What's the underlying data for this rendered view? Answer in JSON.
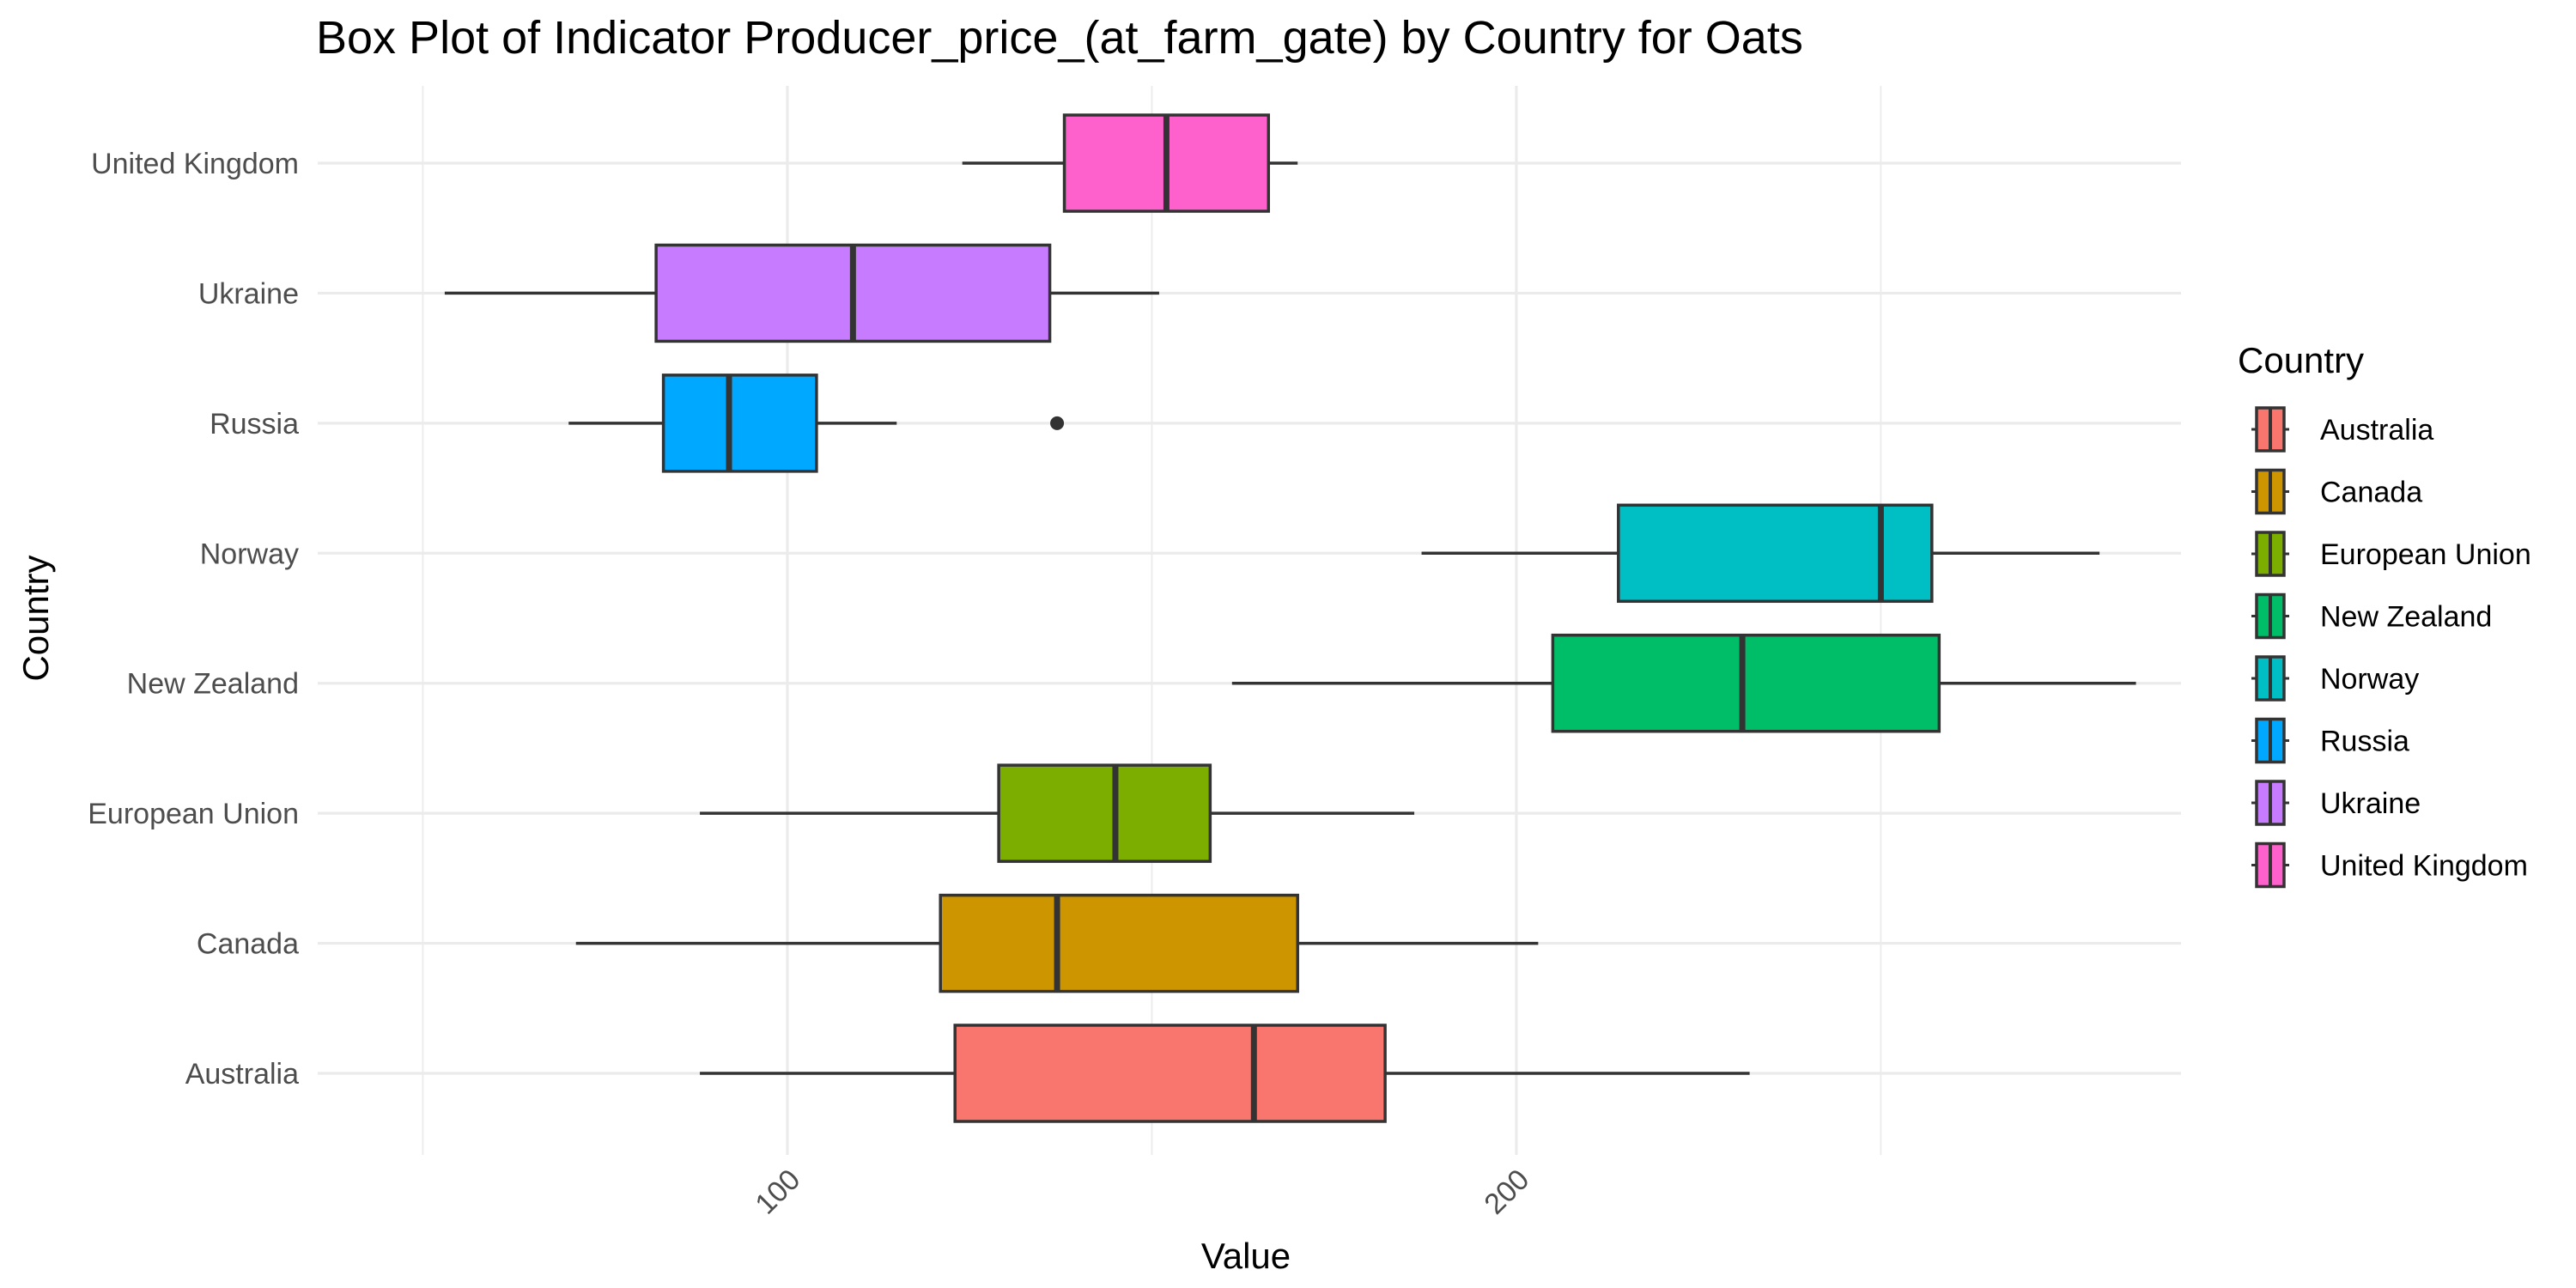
{
  "chart_data": {
    "type": "boxplot",
    "orientation": "horizontal",
    "title": "Box Plot of Indicator Producer_price_(at_farm_gate) by Country for Oats",
    "xlabel": "Value",
    "ylabel": "Country",
    "xlim": [
      45,
      290
    ],
    "x_ticks": [
      100,
      200
    ],
    "grid": true,
    "legend": {
      "title": "Country",
      "position": "right"
    },
    "categories": [
      "Australia",
      "Canada",
      "European Union",
      "New Zealand",
      "Norway",
      "Russia",
      "Ukraine",
      "United Kingdom"
    ],
    "series": [
      {
        "name": "Australia",
        "color": "#F8766D",
        "whisker_low": 88,
        "q1": 123,
        "median": 164,
        "q3": 182,
        "whisker_high": 232,
        "outliers": []
      },
      {
        "name": "Canada",
        "color": "#CD9600",
        "whisker_low": 71,
        "q1": 121,
        "median": 137,
        "q3": 170,
        "whisker_high": 203,
        "outliers": []
      },
      {
        "name": "European Union",
        "color": "#7CAE00",
        "whisker_low": 88,
        "q1": 129,
        "median": 145,
        "q3": 158,
        "whisker_high": 186,
        "outliers": []
      },
      {
        "name": "New Zealand",
        "color": "#00BE67",
        "whisker_low": 161,
        "q1": 205,
        "median": 231,
        "q3": 258,
        "whisker_high": 285,
        "outliers": []
      },
      {
        "name": "Norway",
        "color": "#00BFC4",
        "whisker_low": 187,
        "q1": 214,
        "median": 250,
        "q3": 257,
        "whisker_high": 280,
        "outliers": []
      },
      {
        "name": "Russia",
        "color": "#00A9FF",
        "whisker_low": 70,
        "q1": 83,
        "median": 92,
        "q3": 104,
        "whisker_high": 115,
        "outliers": [
          137
        ]
      },
      {
        "name": "Ukraine",
        "color": "#C77CFF",
        "whisker_low": 53,
        "q1": 82,
        "median": 109,
        "q3": 136,
        "whisker_high": 151,
        "outliers": []
      },
      {
        "name": "United Kingdom",
        "color": "#FF61CC",
        "whisker_low": 124,
        "q1": 138,
        "median": 152,
        "q3": 166,
        "whisker_high": 170,
        "outliers": []
      }
    ]
  }
}
